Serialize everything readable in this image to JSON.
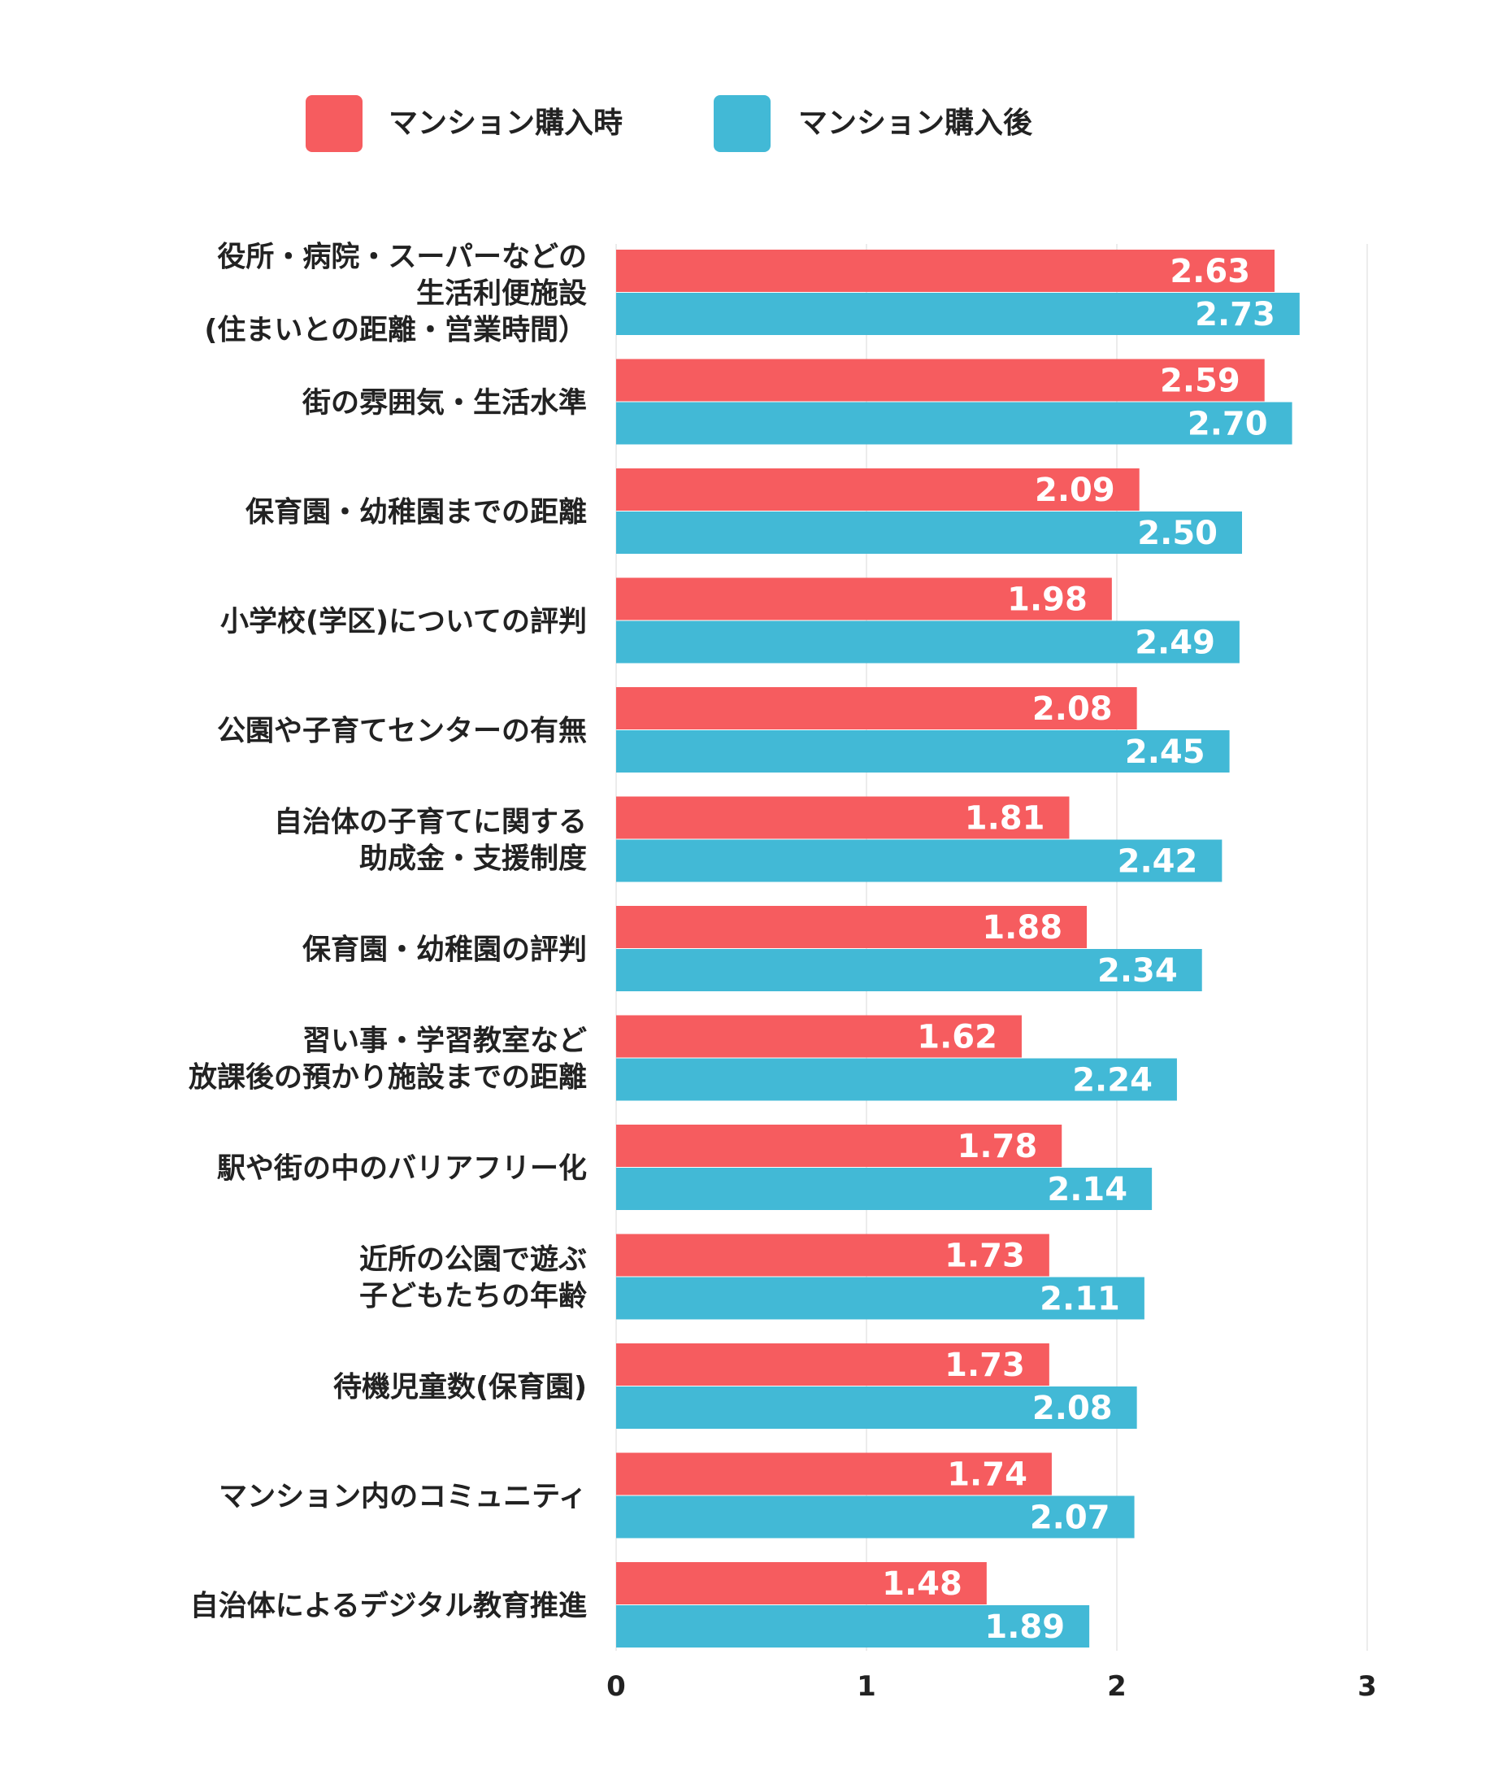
{
  "chart_data": {
    "type": "bar",
    "orientation": "horizontal",
    "legend_position": "top",
    "grid": true,
    "xlim": [
      0,
      3
    ],
    "ticks": [
      "0",
      "1",
      "2",
      "3"
    ],
    "tick_values": [
      0,
      1,
      2,
      3
    ],
    "categories": [
      [
        "役所・病院・スーパーなどの",
        "生活利便施設",
        "(住まいとの距離・営業時間）"
      ],
      [
        "街の雰囲気・生活水準"
      ],
      [
        "保育園・幼稚園までの距離"
      ],
      [
        "小学校(学区)についての評判"
      ],
      [
        "公園や子育てセンターの有無"
      ],
      [
        "自治体の子育てに関する",
        "助成金・支援制度"
      ],
      [
        "保育園・幼稚園の評判"
      ],
      [
        "習い事・学習教室など",
        "放課後の預かり施設までの距離"
      ],
      [
        "駅や街の中のバリアフリー化"
      ],
      [
        "近所の公園で遊ぶ",
        "子どもたちの年齢"
      ],
      [
        "待機児童数(保育園)"
      ],
      [
        "マンション内のコミュニティ"
      ],
      [
        "自治体によるデジタル教育推進"
      ]
    ],
    "series": [
      {
        "name": "マンション購入時",
        "color": "#f65c5f",
        "values": [
          2.63,
          2.59,
          2.09,
          1.98,
          2.08,
          1.81,
          1.88,
          1.62,
          1.78,
          1.73,
          1.73,
          1.74,
          1.48
        ],
        "labels": [
          "2.63",
          "2.59",
          "2.09",
          "1.98",
          "2.08",
          "1.81",
          "1.88",
          "1.62",
          "1.78",
          "1.73",
          "1.73",
          "1.74",
          "1.48"
        ]
      },
      {
        "name": "マンション購入後",
        "color": "#42b9d6",
        "values": [
          2.73,
          2.7,
          2.5,
          2.49,
          2.45,
          2.42,
          2.34,
          2.24,
          2.14,
          2.11,
          2.08,
          2.07,
          1.89
        ],
        "labels": [
          "2.73",
          "2.70",
          "2.50",
          "2.49",
          "2.45",
          "2.42",
          "2.34",
          "2.24",
          "2.14",
          "2.11",
          "2.08",
          "2.07",
          "1.89"
        ]
      }
    ]
  }
}
